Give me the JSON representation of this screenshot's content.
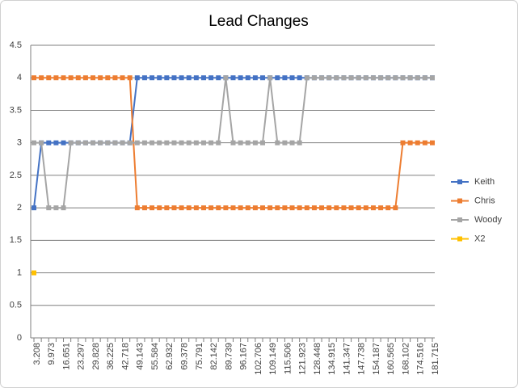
{
  "chart_data": {
    "type": "line",
    "title": "Lead Changes",
    "categories": [
      "3.208",
      null,
      "9.973",
      null,
      "16.651",
      null,
      "23.297",
      null,
      "29.828",
      null,
      "36.225",
      null,
      "42.718",
      null,
      "49.143",
      null,
      "55.584",
      null,
      "62.932",
      null,
      "69.378",
      null,
      "75.791",
      null,
      "82.142",
      null,
      "89.739",
      null,
      "96.167",
      null,
      "102.706",
      null,
      "109.149",
      null,
      "115.506",
      null,
      "121.923",
      null,
      "128.448",
      null,
      "134.915",
      null,
      "141.347",
      null,
      "147.738",
      null,
      "154.187",
      null,
      "160.565",
      null,
      "168.102",
      null,
      "174.516",
      null,
      "181.715"
    ],
    "series": [
      {
        "name": "Keith",
        "color": "#4472c4",
        "values": [
          2,
          3,
          3,
          3,
          3,
          3,
          3,
          3,
          3,
          3,
          3,
          3,
          3,
          3,
          4,
          4,
          4,
          4,
          4,
          4,
          4,
          4,
          4,
          4,
          4,
          4,
          4,
          4,
          4,
          4,
          4,
          4,
          4,
          4,
          4,
          4,
          4,
          4,
          4,
          4,
          4,
          4,
          4,
          4,
          4,
          4,
          4,
          4,
          4,
          4,
          4,
          4,
          4,
          4,
          4
        ]
      },
      {
        "name": "Chris",
        "color": "#ed7d31",
        "values": [
          4,
          4,
          4,
          4,
          4,
          4,
          4,
          4,
          4,
          4,
          4,
          4,
          4,
          4,
          2,
          2,
          2,
          2,
          2,
          2,
          2,
          2,
          2,
          2,
          2,
          2,
          2,
          2,
          2,
          2,
          2,
          2,
          2,
          2,
          2,
          2,
          2,
          2,
          2,
          2,
          2,
          2,
          2,
          2,
          2,
          2,
          2,
          2,
          2,
          2,
          3,
          3,
          3,
          3,
          3
        ]
      },
      {
        "name": "Woody",
        "color": "#a5a5a5",
        "values": [
          3,
          3,
          2,
          2,
          2,
          3,
          3,
          3,
          3,
          3,
          3,
          3,
          3,
          3,
          3,
          3,
          3,
          3,
          3,
          3,
          3,
          3,
          3,
          3,
          3,
          3,
          4,
          3,
          3,
          3,
          3,
          3,
          4,
          3,
          3,
          3,
          3,
          4,
          4,
          4,
          4,
          4,
          4,
          4,
          4,
          4,
          4,
          4,
          4,
          4,
          4,
          4,
          4,
          4,
          4
        ]
      },
      {
        "name": "X2",
        "color": "#ffc000",
        "values": [
          1,
          null,
          null,
          null,
          null,
          null,
          null,
          null,
          null,
          null,
          null,
          null,
          null,
          null,
          null,
          null,
          null,
          null,
          null,
          null,
          null,
          null,
          null,
          null,
          null,
          null,
          null,
          null,
          null,
          null,
          null,
          null,
          null,
          null,
          null,
          null,
          null,
          null,
          null,
          null,
          null,
          null,
          null,
          null,
          null,
          null,
          null,
          null,
          null,
          null,
          null,
          null,
          null,
          null,
          null
        ]
      }
    ],
    "ylim": [
      0,
      4.5
    ],
    "yticks": [
      0,
      0.5,
      1,
      1.5,
      2,
      2.5,
      3,
      3.5,
      4,
      4.5
    ],
    "grid": true,
    "legend": "right"
  }
}
